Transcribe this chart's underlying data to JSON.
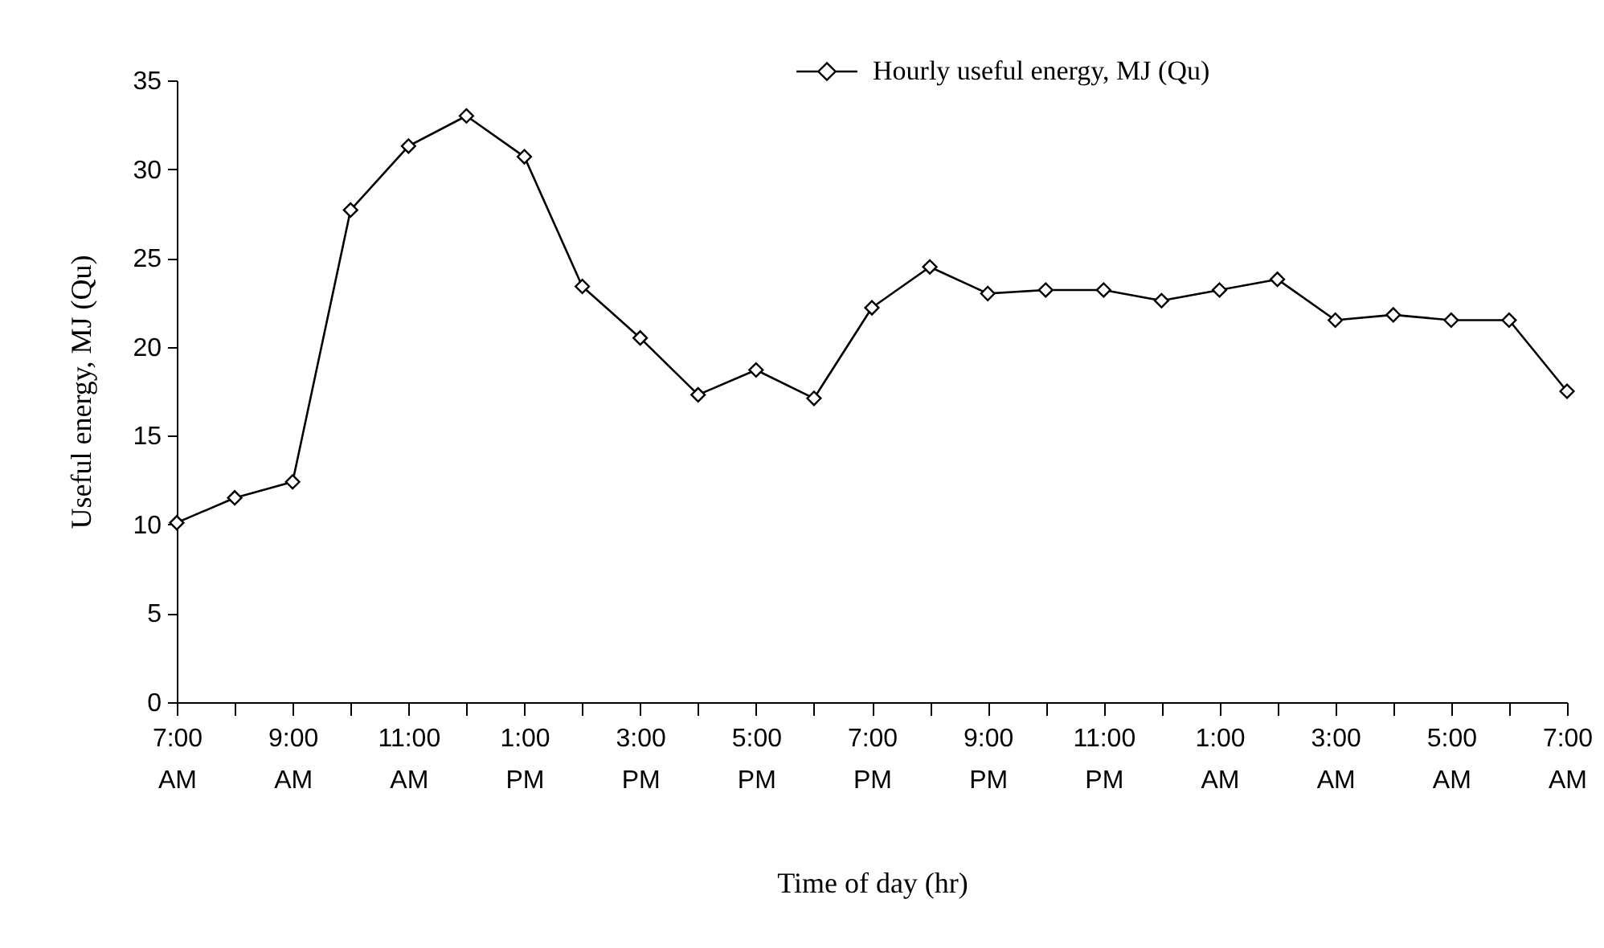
{
  "chart_data": {
    "type": "line",
    "xlabel": "Time of  day (hr)",
    "ylabel": "Useful energy, MJ (Qu)",
    "categories": [
      "7:00 AM",
      null,
      "9:00 AM",
      null,
      "11:00 AM",
      null,
      "1:00 PM",
      null,
      "3:00 PM",
      null,
      "5:00 PM",
      null,
      "7:00 PM",
      null,
      "9:00 PM",
      null,
      "11:00 PM",
      null,
      "1:00 AM",
      null,
      "3:00 AM",
      null,
      "5:00 AM",
      null,
      "7:00 AM"
    ],
    "series": [
      {
        "name": "Hourly useful energy, MJ (Qu)",
        "color": "#000000",
        "values": [
          10.1,
          11.5,
          12.4,
          27.7,
          31.3,
          33.0,
          30.7,
          23.4,
          20.5,
          17.3,
          18.7,
          17.1,
          22.2,
          24.5,
          23.0,
          23.2,
          23.2,
          22.6,
          23.2,
          23.8,
          21.5,
          21.8,
          21.5,
          21.5,
          17.5
        ]
      }
    ],
    "ylim": [
      0,
      35
    ],
    "yticks": [
      0,
      5,
      10,
      15,
      20,
      25,
      30,
      35
    ],
    "grid": false,
    "legend": "top right",
    "marker": "diamond",
    "line_style": "solid"
  }
}
